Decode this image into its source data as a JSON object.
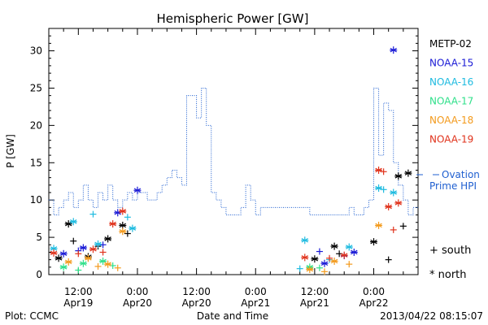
{
  "chart_data": {
    "type": "scatter",
    "title": "Hemispheric Power [GW]",
    "xlabel": "Date and Time",
    "ylabel": "P [GW]",
    "ylim": [
      0,
      33
    ],
    "xlim": [
      "2013-04-19 06:00",
      "2013-04-22 09:00"
    ],
    "y_ticks": [
      0,
      5,
      10,
      15,
      20,
      25,
      30
    ],
    "x_ticks": [
      {
        "t": "2013-04-19 12:00",
        "label1": "12:00",
        "label2": "Apr19"
      },
      {
        "t": "2013-04-20 00:00",
        "label1": "0:00",
        "label2": "Apr20"
      },
      {
        "t": "2013-04-20 12:00",
        "label1": "12:00",
        "label2": "Apr20"
      },
      {
        "t": "2013-04-21 00:00",
        "label1": "0:00",
        "label2": "Apr21"
      },
      {
        "t": "2013-04-21 12:00",
        "label1": "12:00",
        "label2": "Apr21"
      },
      {
        "t": "2013-04-22 00:00",
        "label1": "0:00",
        "label2": "Apr22"
      }
    ],
    "footer_left": "Plot: CCMC",
    "footer_right": "2013/04/22 08:15:07",
    "ovation": {
      "legend_line1": "Ovation",
      "legend_line2": "Prime HPI",
      "color": "#1f5fd0",
      "points": [
        [
          "2013-04-19 06:00",
          10
        ],
        [
          "2013-04-19 07:00",
          8
        ],
        [
          "2013-04-19 08:00",
          9
        ],
        [
          "2013-04-19 09:00",
          10
        ],
        [
          "2013-04-19 10:00",
          11
        ],
        [
          "2013-04-19 11:00",
          9
        ],
        [
          "2013-04-19 12:00",
          10
        ],
        [
          "2013-04-19 13:00",
          12
        ],
        [
          "2013-04-19 14:00",
          10
        ],
        [
          "2013-04-19 15:00",
          9
        ],
        [
          "2013-04-19 16:00",
          11
        ],
        [
          "2013-04-19 17:00",
          10
        ],
        [
          "2013-04-19 18:00",
          12
        ],
        [
          "2013-04-19 19:00",
          10
        ],
        [
          "2013-04-19 20:00",
          9
        ],
        [
          "2013-04-19 21:00",
          10
        ],
        [
          "2013-04-19 22:00",
          11
        ],
        [
          "2013-04-19 23:00",
          10
        ],
        [
          "2013-04-20 00:00",
          11
        ],
        [
          "2013-04-20 01:00",
          11
        ],
        [
          "2013-04-20 02:00",
          10
        ],
        [
          "2013-04-20 03:00",
          10
        ],
        [
          "2013-04-20 04:00",
          11
        ],
        [
          "2013-04-20 05:00",
          12
        ],
        [
          "2013-04-20 06:00",
          13
        ],
        [
          "2013-04-20 07:00",
          14
        ],
        [
          "2013-04-20 08:00",
          13
        ],
        [
          "2013-04-20 09:00",
          12
        ],
        [
          "2013-04-20 10:00",
          24
        ],
        [
          "2013-04-20 11:00",
          24
        ],
        [
          "2013-04-20 12:00",
          21
        ],
        [
          "2013-04-20 13:00",
          25
        ],
        [
          "2013-04-20 14:00",
          20
        ],
        [
          "2013-04-20 15:00",
          11
        ],
        [
          "2013-04-20 16:00",
          10
        ],
        [
          "2013-04-20 17:00",
          9
        ],
        [
          "2013-04-20 18:00",
          8
        ],
        [
          "2013-04-20 19:00",
          8
        ],
        [
          "2013-04-20 20:00",
          8
        ],
        [
          "2013-04-20 21:00",
          9
        ],
        [
          "2013-04-20 22:00",
          12
        ],
        [
          "2013-04-20 23:00",
          10
        ],
        [
          "2013-04-21 00:00",
          8
        ],
        [
          "2013-04-21 01:00",
          9
        ],
        [
          "2013-04-21 02:00",
          9
        ],
        [
          "2013-04-21 03:00",
          9
        ],
        [
          "2013-04-21 04:00",
          9
        ],
        [
          "2013-04-21 05:00",
          9
        ],
        [
          "2013-04-21 06:00",
          9
        ],
        [
          "2013-04-21 07:00",
          9
        ],
        [
          "2013-04-21 08:00",
          9
        ],
        [
          "2013-04-21 09:00",
          9
        ],
        [
          "2013-04-21 10:00",
          9
        ],
        [
          "2013-04-21 11:00",
          8
        ],
        [
          "2013-04-21 12:00",
          8
        ],
        [
          "2013-04-21 13:00",
          8
        ],
        [
          "2013-04-21 14:00",
          8
        ],
        [
          "2013-04-21 15:00",
          8
        ],
        [
          "2013-04-21 16:00",
          8
        ],
        [
          "2013-04-21 17:00",
          8
        ],
        [
          "2013-04-21 18:00",
          8
        ],
        [
          "2013-04-21 19:00",
          9
        ],
        [
          "2013-04-21 20:00",
          8
        ],
        [
          "2013-04-21 21:00",
          8
        ],
        [
          "2013-04-21 22:00",
          9
        ],
        [
          "2013-04-21 23:00",
          10
        ],
        [
          "2013-04-22 00:00",
          25
        ],
        [
          "2013-04-22 01:00",
          16
        ],
        [
          "2013-04-22 02:00",
          23
        ],
        [
          "2013-04-22 03:00",
          22
        ],
        [
          "2013-04-22 04:00",
          15
        ],
        [
          "2013-04-22 05:00",
          12
        ],
        [
          "2013-04-22 06:00",
          10
        ],
        [
          "2013-04-22 07:00",
          8
        ],
        [
          "2013-04-22 08:00",
          9
        ],
        [
          "2013-04-22 09:00",
          9
        ]
      ]
    },
    "series": [
      {
        "name": "METP-02",
        "color": "#000000",
        "north": [
          [
            "2013-04-19 08:00",
            2.2
          ],
          [
            "2013-04-19 10:00",
            6.8
          ],
          [
            "2013-04-19 14:00",
            2.4
          ],
          [
            "2013-04-19 18:00",
            4.8
          ],
          [
            "2013-04-19 21:00",
            6.6
          ],
          [
            "2013-04-21 12:00",
            2.1
          ],
          [
            "2013-04-21 16:00",
            3.8
          ],
          [
            "2013-04-22 00:00",
            4.4
          ],
          [
            "2013-04-22 05:00",
            13.2
          ],
          [
            "2013-04-22 07:00",
            13.6
          ]
        ],
        "south": [
          [
            "2013-04-19 11:00",
            4.5
          ],
          [
            "2013-04-19 16:00",
            3.8
          ],
          [
            "2013-04-19 22:00",
            5.5
          ],
          [
            "2013-04-21 17:00",
            2.8
          ],
          [
            "2013-04-22 03:00",
            2.0
          ],
          [
            "2013-04-22 06:00",
            6.5
          ]
        ]
      },
      {
        "name": "NOAA-15",
        "color": "#1a1ad6",
        "north": [
          [
            "2013-04-19 09:00",
            2.8
          ],
          [
            "2013-04-19 13:00",
            3.6
          ],
          [
            "2013-04-19 20:00",
            8.3
          ],
          [
            "2013-04-20 00:00",
            11.3
          ],
          [
            "2013-04-21 14:00",
            1.5
          ],
          [
            "2013-04-21 20:00",
            3.0
          ],
          [
            "2013-04-22 04:00",
            30.1
          ]
        ],
        "south": [
          [
            "2013-04-19 12:00",
            3.2
          ],
          [
            "2013-04-19 17:00",
            4.0
          ],
          [
            "2013-04-21 13:00",
            3.1
          ],
          [
            "2013-04-21 18:00",
            2.5
          ]
        ]
      },
      {
        "name": "NOAA-16",
        "color": "#1ebbe0",
        "north": [
          [
            "2013-04-19 07:00",
            3.5
          ],
          [
            "2013-04-19 11:00",
            7.1
          ],
          [
            "2013-04-19 16:00",
            4.1
          ],
          [
            "2013-04-19 23:00",
            6.2
          ],
          [
            "2013-04-21 10:00",
            4.6
          ],
          [
            "2013-04-21 19:00",
            3.7
          ],
          [
            "2013-04-22 01:00",
            11.6
          ],
          [
            "2013-04-22 04:00",
            11.0
          ]
        ],
        "south": [
          [
            "2013-04-19 15:00",
            8.1
          ],
          [
            "2013-04-19 22:00",
            7.7
          ],
          [
            "2013-04-21 09:00",
            0.8
          ],
          [
            "2013-04-21 15:00",
            2.0
          ],
          [
            "2013-04-22 02:00",
            11.4
          ]
        ]
      },
      {
        "name": "NOAA-17",
        "color": "#2fe08a",
        "north": [
          [
            "2013-04-19 09:00",
            1.0
          ],
          [
            "2013-04-19 13:00",
            1.5
          ],
          [
            "2013-04-19 17:00",
            1.8
          ],
          [
            "2013-04-21 11:00",
            1.0
          ]
        ],
        "south": [
          [
            "2013-04-19 12:00",
            0.6
          ],
          [
            "2013-04-19 19:00",
            1.2
          ],
          [
            "2013-04-21 13:00",
            0.9
          ]
        ]
      },
      {
        "name": "NOAA-18",
        "color": "#f39a1c",
        "north": [
          [
            "2013-04-19 10:00",
            1.7
          ],
          [
            "2013-04-19 14:00",
            2.2
          ],
          [
            "2013-04-19 18:00",
            1.4
          ],
          [
            "2013-04-19 21:00",
            5.8
          ],
          [
            "2013-04-21 11:00",
            0.7
          ],
          [
            "2013-04-21 16:00",
            1.8
          ],
          [
            "2013-04-22 01:00",
            6.6
          ]
        ],
        "south": [
          [
            "2013-04-19 16:00",
            1.1
          ],
          [
            "2013-04-19 20:00",
            0.9
          ],
          [
            "2013-04-21 14:00",
            0.4
          ],
          [
            "2013-04-21 19:00",
            1.4
          ]
        ]
      },
      {
        "name": "NOAA-19",
        "color": "#e0321b",
        "north": [
          [
            "2013-04-19 07:00",
            2.9
          ],
          [
            "2013-04-19 15:00",
            3.4
          ],
          [
            "2013-04-19 19:00",
            6.8
          ],
          [
            "2013-04-19 21:00",
            8.5
          ],
          [
            "2013-04-21 10:00",
            2.3
          ],
          [
            "2013-04-21 18:00",
            2.6
          ],
          [
            "2013-04-22 01:00",
            14.0
          ],
          [
            "2013-04-22 03:00",
            9.1
          ],
          [
            "2013-04-22 05:00",
            9.6
          ]
        ],
        "south": [
          [
            "2013-04-19 12:00",
            2.8
          ],
          [
            "2013-04-19 17:00",
            3.0
          ],
          [
            "2013-04-21 15:00",
            2.2
          ],
          [
            "2013-04-22 02:00",
            13.8
          ],
          [
            "2013-04-22 04:00",
            6.0
          ]
        ]
      }
    ],
    "marker_legend": [
      {
        "symbol": "+",
        "label": "south"
      },
      {
        "symbol": "*",
        "label": "north"
      }
    ]
  }
}
